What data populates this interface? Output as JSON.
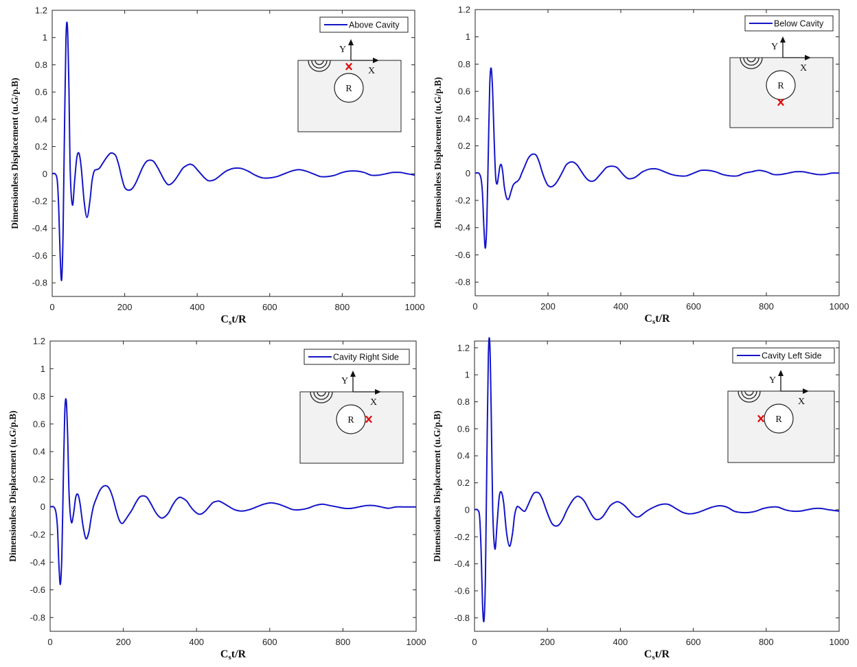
{
  "chart_data": [
    {
      "type": "line",
      "title": "",
      "xlabel": "C",
      "xlabel_sub": "s",
      "xlabel_suffix": "t/R",
      "ylabel": "Dimensionless Displacement (u.G/p.B)",
      "xlim": [
        0,
        1000
      ],
      "ylim": [
        -0.9,
        1.2
      ],
      "xticks": [
        0,
        200,
        400,
        600,
        800,
        1000
      ],
      "yticks": [
        -0.8,
        -0.6,
        -0.4,
        -0.2,
        0,
        0.2,
        0.4,
        0.6,
        0.8,
        1,
        1.2
      ],
      "legend_position": "top-right",
      "series": [
        {
          "name": "Above Cavity",
          "color": "#1414c8",
          "x": [
            0,
            8,
            14,
            18,
            22,
            26,
            30,
            34,
            38,
            42,
            46,
            50,
            56,
            62,
            68,
            74,
            80,
            88,
            96,
            104,
            110,
            116,
            122,
            130,
            140,
            150,
            160,
            168,
            176,
            184,
            192,
            200,
            210,
            220,
            230,
            240,
            250,
            260,
            270,
            280,
            290,
            300,
            310,
            320,
            330,
            340,
            350,
            360,
            370,
            380,
            390,
            400,
            410,
            420,
            430,
            440,
            450,
            460,
            480,
            500,
            520,
            540,
            560,
            580,
            600,
            620,
            640,
            660,
            680,
            700,
            720,
            740,
            760,
            780,
            800,
            820,
            840,
            860,
            880,
            900,
            920,
            940,
            960,
            980,
            1000
          ],
          "y": [
            0,
            0,
            -0.05,
            -0.25,
            -0.6,
            -0.78,
            -0.45,
            0.35,
            1.0,
            1.08,
            0.65,
            0.0,
            -0.23,
            -0.05,
            0.12,
            0.15,
            0.05,
            -0.2,
            -0.32,
            -0.2,
            -0.05,
            0.02,
            0.03,
            0.04,
            0.08,
            0.12,
            0.15,
            0.15,
            0.13,
            0.06,
            -0.03,
            -0.1,
            -0.12,
            -0.11,
            -0.07,
            -0.01,
            0.05,
            0.09,
            0.1,
            0.09,
            0.05,
            0.0,
            -0.05,
            -0.08,
            -0.07,
            -0.04,
            0.0,
            0.04,
            0.06,
            0.07,
            0.06,
            0.03,
            0.0,
            -0.03,
            -0.05,
            -0.05,
            -0.04,
            -0.02,
            0.02,
            0.04,
            0.04,
            0.02,
            -0.01,
            -0.03,
            -0.03,
            -0.02,
            0.0,
            0.02,
            0.03,
            0.02,
            0.0,
            -0.02,
            -0.02,
            -0.01,
            0.01,
            0.02,
            0.02,
            0.01,
            -0.01,
            -0.01,
            0.0,
            0.01,
            0.01,
            0.0,
            -0.01
          ]
        }
      ],
      "inset": {
        "point_label": "R",
        "x_label": "X",
        "y_label": "Y",
        "marker": "x",
        "marker_color": "#e01010",
        "marker_position": "above cavity"
      }
    },
    {
      "type": "line",
      "title": "",
      "xlabel": "C",
      "xlabel_sub": "s",
      "xlabel_suffix": "t/R",
      "ylabel": "Dimensionless Displacement (u.G/p.B)",
      "xlim": [
        0,
        1000
      ],
      "ylim": [
        -0.9,
        1.2
      ],
      "xticks": [
        0,
        200,
        400,
        600,
        800,
        1000
      ],
      "yticks": [
        -0.8,
        -0.6,
        -0.4,
        -0.2,
        0,
        0.2,
        0.4,
        0.6,
        0.8,
        1,
        1.2
      ],
      "legend_position": "top-right",
      "series": [
        {
          "name": "Below Cavity",
          "color": "#1414c8",
          "x": [
            0,
            10,
            16,
            20,
            24,
            28,
            32,
            36,
            40,
            44,
            48,
            52,
            56,
            60,
            64,
            68,
            72,
            76,
            80,
            86,
            92,
            98,
            104,
            110,
            116,
            122,
            128,
            136,
            144,
            152,
            160,
            168,
            176,
            184,
            192,
            200,
            210,
            220,
            230,
            240,
            250,
            260,
            270,
            280,
            290,
            300,
            310,
            320,
            330,
            340,
            350,
            360,
            370,
            380,
            390,
            400,
            410,
            420,
            430,
            440,
            450,
            460,
            480,
            500,
            520,
            540,
            560,
            580,
            600,
            620,
            640,
            660,
            680,
            700,
            720,
            740,
            760,
            780,
            800,
            820,
            840,
            860,
            880,
            900,
            920,
            940,
            960,
            980,
            1000
          ],
          "y": [
            0,
            0,
            -0.04,
            -0.15,
            -0.4,
            -0.55,
            -0.35,
            0.15,
            0.65,
            0.77,
            0.6,
            0.25,
            -0.02,
            -0.08,
            -0.02,
            0.05,
            0.06,
            0.0,
            -0.1,
            -0.18,
            -0.19,
            -0.14,
            -0.09,
            -0.07,
            -0.06,
            -0.04,
            0.0,
            0.05,
            0.1,
            0.13,
            0.14,
            0.13,
            0.08,
            0.01,
            -0.05,
            -0.09,
            -0.1,
            -0.08,
            -0.04,
            0.01,
            0.06,
            0.08,
            0.08,
            0.06,
            0.02,
            -0.02,
            -0.05,
            -0.06,
            -0.05,
            -0.02,
            0.01,
            0.04,
            0.05,
            0.05,
            0.04,
            0.01,
            -0.02,
            -0.04,
            -0.04,
            -0.03,
            -0.01,
            0.01,
            0.03,
            0.03,
            0.01,
            -0.01,
            -0.02,
            -0.02,
            0.0,
            0.02,
            0.02,
            0.01,
            -0.01,
            -0.02,
            -0.02,
            0.0,
            0.01,
            0.02,
            0.01,
            -0.01,
            -0.01,
            0.0,
            0.01,
            0.01,
            0.0,
            -0.01,
            -0.01,
            0.0,
            0.0
          ]
        }
      ],
      "inset": {
        "point_label": "R",
        "x_label": "X",
        "y_label": "Y",
        "marker": "x",
        "marker_color": "#e01010",
        "marker_position": "below cavity"
      }
    },
    {
      "type": "line",
      "title": "",
      "xlabel": "C",
      "xlabel_sub": "s",
      "xlabel_suffix": "t/R",
      "ylabel": "Dimensionless Displacement (u.G/p.B)",
      "xlim": [
        0,
        1000
      ],
      "ylim": [
        -0.9,
        1.2
      ],
      "xticks": [
        0,
        200,
        400,
        600,
        800,
        1000
      ],
      "yticks": [
        -0.8,
        -0.6,
        -0.4,
        -0.2,
        0,
        0.2,
        0.4,
        0.6,
        0.8,
        1,
        1.2
      ],
      "legend_position": "top-right",
      "series": [
        {
          "name": "Cavity Right Side",
          "color": "#1414c8",
          "x": [
            0,
            10,
            16,
            20,
            24,
            28,
            32,
            36,
            40,
            44,
            48,
            52,
            58,
            64,
            70,
            76,
            82,
            90,
            98,
            106,
            112,
            118,
            126,
            136,
            146,
            156,
            164,
            172,
            180,
            188,
            196,
            204,
            214,
            224,
            234,
            244,
            254,
            264,
            274,
            284,
            294,
            304,
            314,
            324,
            334,
            344,
            354,
            364,
            374,
            384,
            394,
            404,
            414,
            424,
            434,
            444,
            454,
            464,
            484,
            504,
            524,
            544,
            564,
            584,
            604,
            624,
            644,
            664,
            684,
            704,
            724,
            744,
            764,
            784,
            804,
            824,
            844,
            864,
            884,
            904,
            924,
            944,
            964,
            984,
            1000
          ],
          "y": [
            0,
            0,
            -0.04,
            -0.15,
            -0.42,
            -0.56,
            -0.35,
            0.2,
            0.68,
            0.77,
            0.5,
            0.08,
            -0.11,
            -0.05,
            0.07,
            0.09,
            0.02,
            -0.14,
            -0.23,
            -0.18,
            -0.08,
            0.0,
            0.06,
            0.12,
            0.15,
            0.15,
            0.12,
            0.06,
            -0.02,
            -0.09,
            -0.12,
            -0.1,
            -0.06,
            -0.02,
            0.03,
            0.07,
            0.08,
            0.07,
            0.03,
            -0.02,
            -0.06,
            -0.08,
            -0.07,
            -0.04,
            0.01,
            0.05,
            0.07,
            0.06,
            0.04,
            0.0,
            -0.03,
            -0.05,
            -0.05,
            -0.03,
            0.0,
            0.03,
            0.04,
            0.04,
            0.01,
            -0.02,
            -0.03,
            -0.02,
            0.0,
            0.02,
            0.03,
            0.02,
            0.0,
            -0.02,
            -0.02,
            -0.01,
            0.01,
            0.02,
            0.01,
            0.0,
            -0.01,
            -0.01,
            0.0,
            0.01,
            0.01,
            0.0,
            -0.01,
            0.0,
            0.0,
            0.0,
            0.0
          ]
        }
      ],
      "inset": {
        "point_label": "R",
        "x_label": "X",
        "y_label": "Y",
        "marker": "x",
        "marker_color": "#e01010",
        "marker_position": "cavity right side"
      }
    },
    {
      "type": "line",
      "title": "",
      "xlabel": "C",
      "xlabel_sub": "s",
      "xlabel_suffix": "t/R",
      "ylabel": "Dimensionless Displacement (u.G/p.B)",
      "xlim": [
        0,
        1000
      ],
      "ylim": [
        -0.9,
        1.25
      ],
      "xticks": [
        0,
        200,
        400,
        600,
        800,
        1000
      ],
      "yticks": [
        -0.8,
        -0.6,
        -0.4,
        -0.2,
        0,
        0.2,
        0.4,
        0.6,
        0.8,
        1,
        1.2
      ],
      "legend_position": "top-right",
      "series": [
        {
          "name": "Cavity Left Side",
          "color": "#1414c8",
          "x": [
            0,
            8,
            14,
            18,
            22,
            26,
            30,
            34,
            38,
            42,
            46,
            50,
            56,
            62,
            68,
            74,
            80,
            88,
            96,
            104,
            110,
            116,
            122,
            130,
            138,
            146,
            154,
            162,
            170,
            178,
            186,
            194,
            202,
            212,
            222,
            232,
            242,
            252,
            262,
            272,
            282,
            292,
            302,
            312,
            322,
            332,
            342,
            352,
            362,
            372,
            382,
            392,
            402,
            412,
            422,
            432,
            442,
            452,
            472,
            492,
            512,
            532,
            552,
            572,
            592,
            612,
            632,
            652,
            672,
            692,
            712,
            732,
            752,
            772,
            792,
            812,
            832,
            852,
            872,
            892,
            912,
            932,
            952,
            972,
            1000
          ],
          "y": [
            0,
            0,
            -0.05,
            -0.3,
            -0.7,
            -0.82,
            -0.5,
            0.4,
            1.15,
            1.23,
            0.7,
            0.0,
            -0.29,
            -0.1,
            0.1,
            0.13,
            0.05,
            -0.17,
            -0.27,
            -0.18,
            -0.04,
            0.02,
            0.02,
            0.0,
            -0.01,
            0.03,
            0.08,
            0.12,
            0.13,
            0.12,
            0.08,
            0.02,
            -0.04,
            -0.1,
            -0.12,
            -0.11,
            -0.07,
            -0.01,
            0.04,
            0.08,
            0.1,
            0.09,
            0.06,
            0.01,
            -0.04,
            -0.07,
            -0.07,
            -0.05,
            -0.01,
            0.03,
            0.05,
            0.06,
            0.05,
            0.03,
            0.0,
            -0.03,
            -0.05,
            -0.05,
            -0.01,
            0.02,
            0.04,
            0.04,
            0.01,
            -0.02,
            -0.03,
            -0.02,
            0.0,
            0.02,
            0.03,
            0.02,
            -0.01,
            -0.02,
            -0.02,
            -0.01,
            0.01,
            0.02,
            0.02,
            0.0,
            -0.01,
            -0.01,
            0.0,
            0.01,
            0.01,
            0.0,
            -0.01
          ]
        }
      ],
      "inset": {
        "point_label": "R",
        "x_label": "X",
        "y_label": "Y",
        "marker": "x",
        "marker_color": "#e01010",
        "marker_position": "cavity left side"
      }
    }
  ]
}
